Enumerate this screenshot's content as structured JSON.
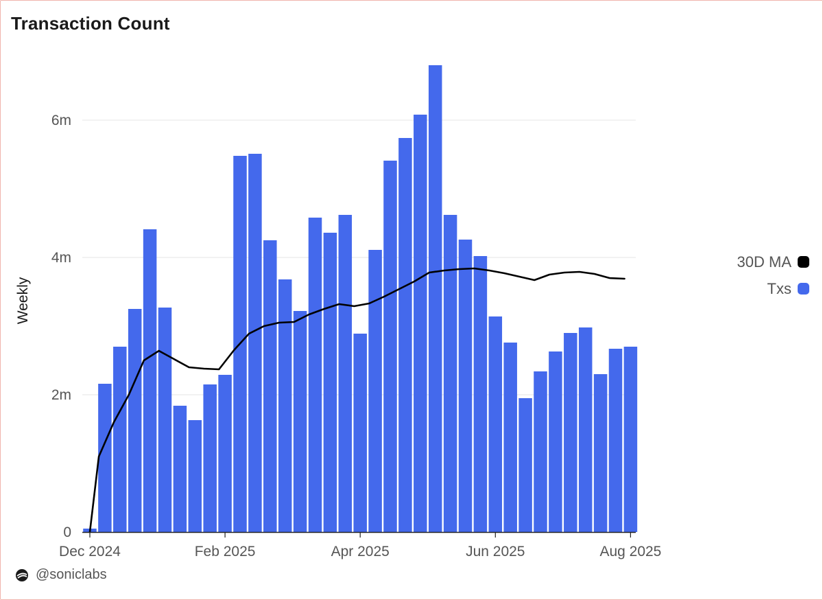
{
  "title": "Transaction Count",
  "footer": {
    "handle": "@soniclabs",
    "logo_icon": "soniclabs-logo-icon"
  },
  "legend": {
    "placement": "right",
    "items": [
      {
        "label": "30D MA",
        "color": "#000000"
      },
      {
        "label": "Txs",
        "color": "#4469ec"
      }
    ]
  },
  "colors": {
    "bars": "#4469ec",
    "line": "#000000",
    "grid": "#e4e4e4",
    "axis": "#222222"
  },
  "chart_data": {
    "type": "bar",
    "title": "Transaction Count",
    "xlabel": "",
    "ylabel": "Weekly",
    "ylim": [
      0,
      6800000
    ],
    "grid": true,
    "y_ticks": [
      {
        "value": 0,
        "label": "0"
      },
      {
        "value": 2000000,
        "label": "2m"
      },
      {
        "value": 4000000,
        "label": "4m"
      },
      {
        "value": 6000000,
        "label": "6m"
      }
    ],
    "x_ticks": [
      {
        "week": 0,
        "label": "Dec 2024"
      },
      {
        "week": 9,
        "label": "Feb 2025"
      },
      {
        "week": 18,
        "label": "Apr 2025"
      },
      {
        "week": 27,
        "label": "Jun 2025"
      },
      {
        "week": 36,
        "label": "Aug 2025"
      }
    ],
    "series": [
      {
        "name": "Txs",
        "type": "bar",
        "values": [
          50000,
          2160000,
          2700000,
          3250000,
          4410000,
          3270000,
          1840000,
          1630000,
          2150000,
          2290000,
          5480000,
          5510000,
          4250000,
          3680000,
          3220000,
          4580000,
          4360000,
          4620000,
          2890000,
          4110000,
          5410000,
          5740000,
          6080000,
          6800000,
          4620000,
          4260000,
          4020000,
          3140000,
          2760000,
          1950000,
          2340000,
          2630000,
          2900000,
          2980000,
          2300000,
          2670000,
          2700000
        ]
      },
      {
        "name": "30D MA",
        "type": "line",
        "points": [
          [
            0,
            0
          ],
          [
            0.6,
            1100000
          ],
          [
            1.6,
            1600000
          ],
          [
            2.6,
            2000000
          ],
          [
            3.6,
            2500000
          ],
          [
            4.6,
            2640000
          ],
          [
            5.6,
            2520000
          ],
          [
            6.6,
            2400000
          ],
          [
            7.6,
            2380000
          ],
          [
            8.6,
            2370000
          ],
          [
            9.6,
            2650000
          ],
          [
            10.6,
            2890000
          ],
          [
            11.6,
            3000000
          ],
          [
            12.6,
            3050000
          ],
          [
            13.6,
            3060000
          ],
          [
            14.6,
            3170000
          ],
          [
            15.6,
            3250000
          ],
          [
            16.6,
            3320000
          ],
          [
            17.6,
            3290000
          ],
          [
            18.6,
            3330000
          ],
          [
            19.6,
            3430000
          ],
          [
            20.6,
            3540000
          ],
          [
            21.6,
            3650000
          ],
          [
            22.6,
            3780000
          ],
          [
            23.6,
            3810000
          ],
          [
            24.6,
            3830000
          ],
          [
            25.6,
            3840000
          ],
          [
            26.6,
            3810000
          ],
          [
            27.6,
            3770000
          ],
          [
            28.6,
            3720000
          ],
          [
            29.6,
            3670000
          ],
          [
            30.6,
            3750000
          ],
          [
            31.6,
            3780000
          ],
          [
            32.6,
            3790000
          ],
          [
            33.6,
            3760000
          ],
          [
            34.6,
            3700000
          ],
          [
            35.6,
            3690000
          ]
        ]
      }
    ]
  }
}
